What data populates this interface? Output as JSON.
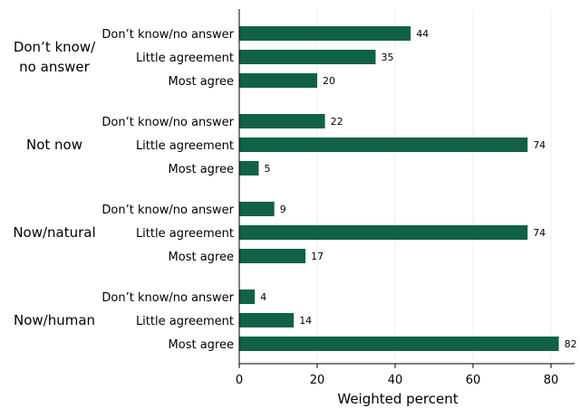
{
  "chart_data": {
    "type": "bar",
    "orientation": "horizontal",
    "xlabel": "Weighted percent",
    "xlim": [
      0,
      84
    ],
    "xticks": [
      0,
      20,
      40,
      60,
      80
    ],
    "grid": true,
    "bar_color": "#116244",
    "groups": [
      {
        "label_lines": [
          "Don’t know/",
          "no answer"
        ],
        "bars": [
          {
            "category": "Don’t know/no answer",
            "value": 44
          },
          {
            "category": "Little agreement",
            "value": 35
          },
          {
            "category": "Most agree",
            "value": 20
          }
        ]
      },
      {
        "label_lines": [
          "Not now"
        ],
        "bars": [
          {
            "category": "Don’t know/no answer",
            "value": 22
          },
          {
            "category": "Little agreement",
            "value": 74
          },
          {
            "category": "Most agree",
            "value": 5
          }
        ]
      },
      {
        "label_lines": [
          "Now/natural"
        ],
        "bars": [
          {
            "category": "Don’t know/no answer",
            "value": 9
          },
          {
            "category": "Little agreement",
            "value": 74
          },
          {
            "category": "Most agree",
            "value": 17
          }
        ]
      },
      {
        "label_lines": [
          "Now/human"
        ],
        "bars": [
          {
            "category": "Don’t know/no answer",
            "value": 4
          },
          {
            "category": "Little agreement",
            "value": 14
          },
          {
            "category": "Most agree",
            "value": 82
          }
        ]
      }
    ]
  }
}
